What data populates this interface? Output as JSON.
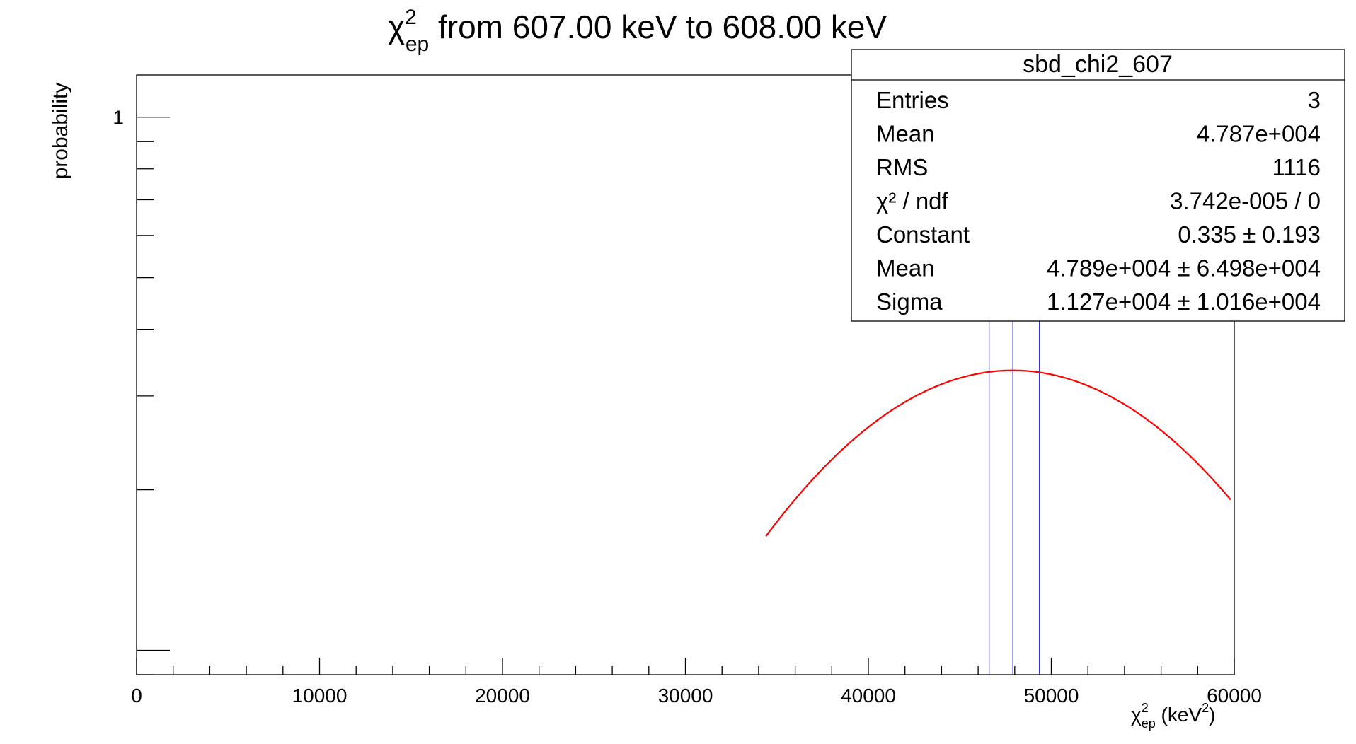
{
  "chart_data": {
    "type": "histogram",
    "title": {
      "symbol": "χ",
      "sup": "2",
      "sub": "ep",
      "text": " from 607.00 keV to 608.00 keV"
    },
    "ylabel": "probability",
    "xlabel": {
      "symbol": "χ",
      "sup": "2",
      "sub": "ep",
      "unit_open": " (keV",
      "unit_sup": "2",
      "unit_close": ")"
    },
    "xlim": [
      0,
      60000
    ],
    "ylog": true,
    "ylim": [
      0.09,
      1.2
    ],
    "x_ticks": [
      0,
      10000,
      20000,
      30000,
      40000,
      50000,
      60000
    ],
    "x_tick_labels": [
      "0",
      "10000",
      "20000",
      "30000",
      "40000",
      "50000",
      "60000"
    ],
    "y_tick_labels": [
      {
        "value": 1,
        "label": "1"
      }
    ],
    "entries_x": [
      46600,
      47900,
      49350
    ],
    "entries_color": "#2b2bd0",
    "fit": {
      "type": "gaus",
      "constant": 0.335,
      "mean": 47890,
      "sigma": 11270,
      "xmin": 34400,
      "xmax": 59800,
      "color": "#ff0000"
    }
  },
  "stats": {
    "name": "sbd_chi2_607",
    "rows": [
      {
        "label": "Entries",
        "value": "3"
      },
      {
        "label": "Mean",
        "value": "4.787e+004"
      },
      {
        "label": "RMS",
        "value": "1116"
      },
      {
        "label": "χ² / ndf",
        "value": "3.742e-005 / 0"
      },
      {
        "label": "Constant",
        "value": "0.335 ± 0.193"
      },
      {
        "label": "Mean",
        "value": "4.789e+004 ± 6.498e+004"
      },
      {
        "label": "Sigma",
        "value": "1.127e+004 ± 1.016e+004"
      }
    ]
  }
}
